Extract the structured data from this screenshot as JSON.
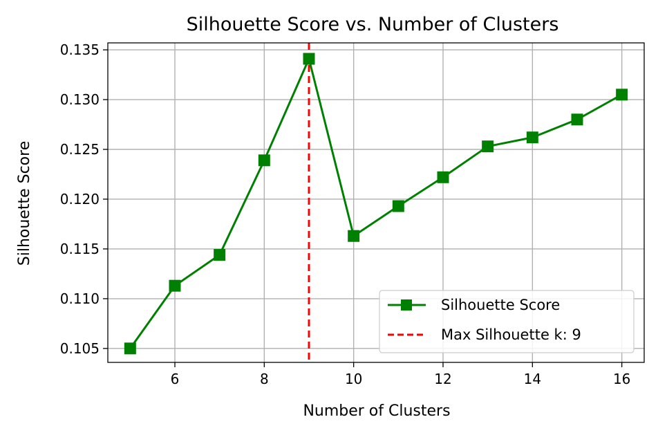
{
  "chart_data": {
    "type": "line",
    "title": "Silhouette Score vs. Number of Clusters",
    "xlabel": "Number of Clusters",
    "ylabel": "Silhouette Score",
    "xlim": [
      4.5,
      16.5
    ],
    "ylim": [
      0.1036,
      0.1357
    ],
    "xticks": [
      6,
      8,
      10,
      12,
      14,
      16
    ],
    "xtick_labels": [
      "6",
      "8",
      "10",
      "12",
      "14",
      "16"
    ],
    "yticks": [
      0.105,
      0.11,
      0.115,
      0.12,
      0.125,
      0.13,
      0.135
    ],
    "ytick_labels": [
      "0.105",
      "0.110",
      "0.115",
      "0.120",
      "0.125",
      "0.130",
      "0.135"
    ],
    "grid": true,
    "legend_position": "lower-right",
    "series": [
      {
        "name": "Silhouette Score",
        "color": "#008000",
        "marker": "square",
        "x": [
          5,
          6,
          7,
          8,
          9,
          10,
          11,
          12,
          13,
          14,
          15,
          16
        ],
        "y": [
          0.105,
          0.1113,
          0.1144,
          0.1239,
          0.1341,
          0.1163,
          0.1193,
          0.1222,
          0.1253,
          0.1262,
          0.128,
          0.1305
        ]
      }
    ],
    "vline": {
      "name": "Max Silhouette k: 9",
      "x": 9,
      "color": "#ff0000",
      "style": "dashed"
    }
  }
}
